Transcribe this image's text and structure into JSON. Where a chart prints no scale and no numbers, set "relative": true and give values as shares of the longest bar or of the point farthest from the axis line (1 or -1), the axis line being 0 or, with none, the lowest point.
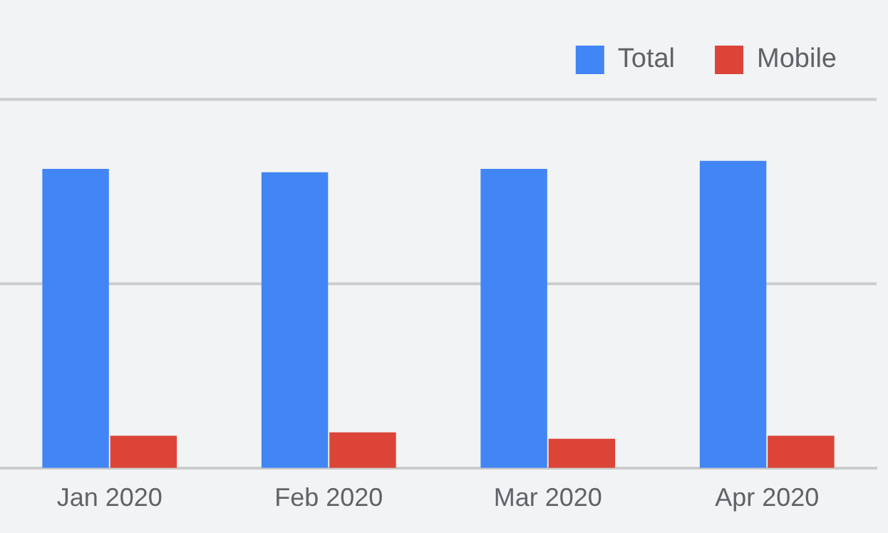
{
  "chart_data": {
    "type": "bar",
    "relative": true,
    "categories": [
      "Jan 2020",
      "Feb 2020",
      "Mar 2020",
      "Apr 2020"
    ],
    "series": [
      {
        "name": "Total",
        "color": "#4285f4",
        "values": [
          0.974,
          0.963,
          0.974,
          1
        ]
      },
      {
        "name": "Mobile",
        "color": "#db4437",
        "values": [
          0.105,
          0.116,
          0.095,
          0.105
        ]
      }
    ],
    "ref_lines": [
      {
        "axis": "y",
        "value": 0.6,
        "color": "#cccccc"
      },
      {
        "axis": "y",
        "value": 1.2,
        "color": "#cccccc"
      }
    ],
    "legend": "top right"
  }
}
